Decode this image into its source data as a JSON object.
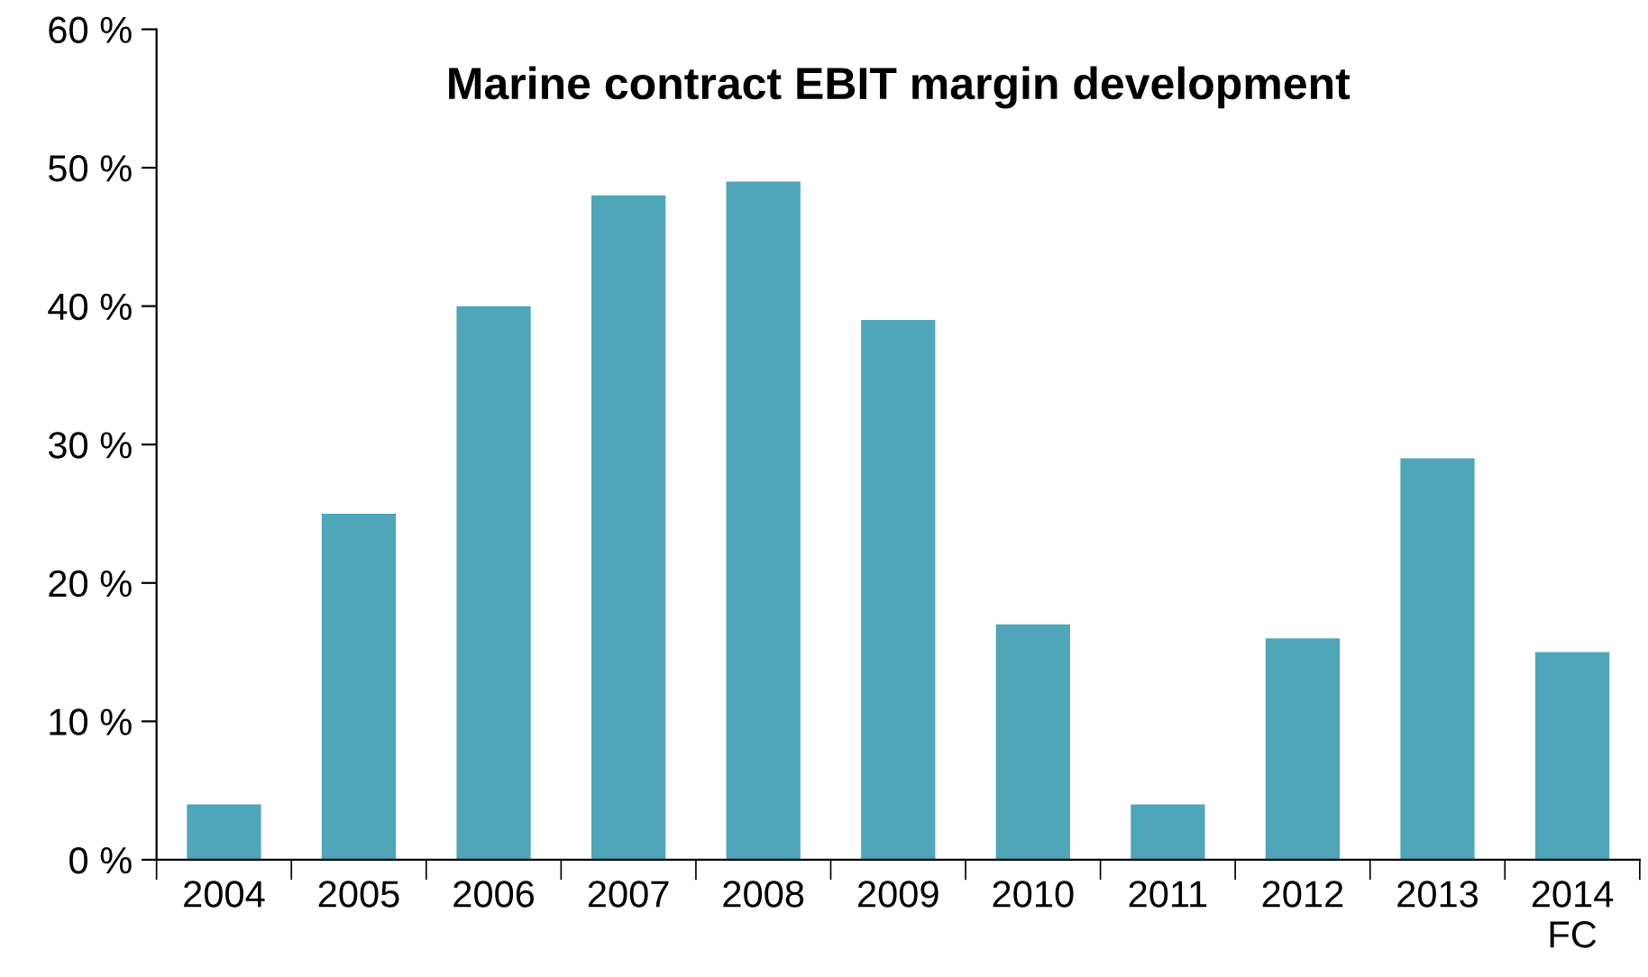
{
  "chart_data": {
    "type": "bar",
    "title": "Marine contract EBIT margin development",
    "categories": [
      "2004",
      "2005",
      "2006",
      "2007",
      "2008",
      "2009",
      "2010",
      "2011",
      "2012",
      "2013",
      "2014\nFC"
    ],
    "values": [
      4,
      25,
      40,
      48,
      49,
      39,
      17,
      4,
      16,
      29,
      15
    ],
    "color": "#4ea6b8",
    "ylim": [
      0,
      60
    ],
    "yticks": [
      {
        "value": 0,
        "label": "0 %"
      },
      {
        "value": 10,
        "label": "10 %"
      },
      {
        "value": 20,
        "label": "20 %"
      },
      {
        "value": 30,
        "label": "30 %"
      },
      {
        "value": 40,
        "label": "40 %"
      },
      {
        "value": 50,
        "label": "50 %"
      },
      {
        "value": 60,
        "label": "60 %"
      }
    ],
    "grid": false,
    "legend": false
  }
}
